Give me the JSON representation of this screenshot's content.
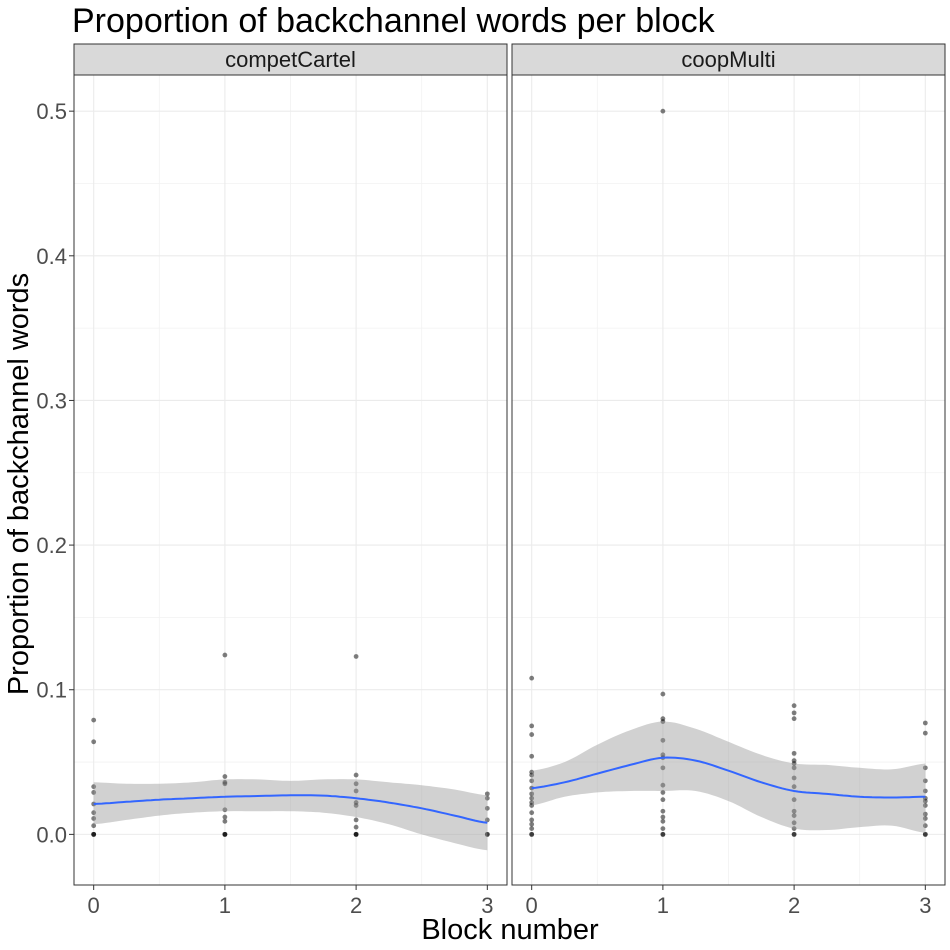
{
  "chart_data": {
    "type": "scatter",
    "title": "Proportion of backchannel words per block",
    "xlabel": "Block number",
    "ylabel": "Proportion of backchannel words",
    "xlim": [
      -0.15,
      3.15
    ],
    "ylim": [
      -0.035,
      0.525
    ],
    "x_ticks": [
      0,
      1,
      2,
      3
    ],
    "y_ticks": [
      0.0,
      0.1,
      0.2,
      0.3,
      0.4,
      0.5
    ],
    "x_tick_labels": [
      "0",
      "1",
      "2",
      "3"
    ],
    "y_tick_labels": [
      "0.0",
      "0.1",
      "0.2",
      "0.3",
      "0.4",
      "0.5"
    ],
    "grid": true,
    "smoother_color": "#3366ff",
    "ribbon_color": "#999999",
    "point_color": "#000000",
    "strip_fill": "#d9d9d9",
    "panels": [
      {
        "name": "competCartel",
        "points": [
          {
            "x": 0,
            "y": 0.079
          },
          {
            "x": 0,
            "y": 0.064
          },
          {
            "x": 0,
            "y": 0.033
          },
          {
            "x": 0,
            "y": 0.029
          },
          {
            "x": 0,
            "y": 0.021
          },
          {
            "x": 0,
            "y": 0.015
          },
          {
            "x": 0,
            "y": 0.011
          },
          {
            "x": 0,
            "y": 0.006
          },
          {
            "x": 0,
            "y": 0.0
          },
          {
            "x": 0,
            "y": 0.0
          },
          {
            "x": 0,
            "y": 0.0
          },
          {
            "x": 1,
            "y": 0.124
          },
          {
            "x": 1,
            "y": 0.04
          },
          {
            "x": 1,
            "y": 0.036
          },
          {
            "x": 1,
            "y": 0.035
          },
          {
            "x": 1,
            "y": 0.017
          },
          {
            "x": 1,
            "y": 0.012
          },
          {
            "x": 1,
            "y": 0.009
          },
          {
            "x": 1,
            "y": 0.0
          },
          {
            "x": 1,
            "y": 0.0
          },
          {
            "x": 1,
            "y": 0.0
          },
          {
            "x": 2,
            "y": 0.123
          },
          {
            "x": 2,
            "y": 0.041
          },
          {
            "x": 2,
            "y": 0.035
          },
          {
            "x": 2,
            "y": 0.03
          },
          {
            "x": 2,
            "y": 0.022
          },
          {
            "x": 2,
            "y": 0.02
          },
          {
            "x": 2,
            "y": 0.01
          },
          {
            "x": 2,
            "y": 0.005
          },
          {
            "x": 2,
            "y": 0.0
          },
          {
            "x": 2,
            "y": 0.0
          },
          {
            "x": 2,
            "y": 0.0
          },
          {
            "x": 3,
            "y": 0.028
          },
          {
            "x": 3,
            "y": 0.025
          },
          {
            "x": 3,
            "y": 0.018
          },
          {
            "x": 3,
            "y": 0.01
          },
          {
            "x": 3,
            "y": 0.0
          },
          {
            "x": 3,
            "y": 0.0
          }
        ],
        "smooth": {
          "x": [
            0,
            0.25,
            0.5,
            0.75,
            1,
            1.25,
            1.5,
            1.75,
            2,
            2.25,
            2.5,
            2.75,
            3
          ],
          "y": [
            0.021,
            0.0225,
            0.024,
            0.025,
            0.026,
            0.0265,
            0.027,
            0.0268,
            0.025,
            0.022,
            0.018,
            0.013,
            0.008
          ],
          "lower": [
            0.007,
            0.01,
            0.013,
            0.015,
            0.016,
            0.016,
            0.016,
            0.015,
            0.012,
            0.007,
            0.0,
            -0.006,
            -0.011
          ],
          "upper": [
            0.036,
            0.035,
            0.035,
            0.036,
            0.038,
            0.038,
            0.037,
            0.038,
            0.038,
            0.036,
            0.034,
            0.031,
            0.027
          ]
        }
      },
      {
        "name": "coopMulti",
        "points": [
          {
            "x": 0,
            "y": 0.108
          },
          {
            "x": 0,
            "y": 0.075
          },
          {
            "x": 0,
            "y": 0.069
          },
          {
            "x": 0,
            "y": 0.054
          },
          {
            "x": 0,
            "y": 0.043
          },
          {
            "x": 0,
            "y": 0.041
          },
          {
            "x": 0,
            "y": 0.037
          },
          {
            "x": 0,
            "y": 0.032
          },
          {
            "x": 0,
            "y": 0.028
          },
          {
            "x": 0,
            "y": 0.025
          },
          {
            "x": 0,
            "y": 0.022
          },
          {
            "x": 0,
            "y": 0.02
          },
          {
            "x": 0,
            "y": 0.015
          },
          {
            "x": 0,
            "y": 0.01
          },
          {
            "x": 0,
            "y": 0.007
          },
          {
            "x": 0,
            "y": 0.004
          },
          {
            "x": 0,
            "y": 0.0
          },
          {
            "x": 0,
            "y": 0.0
          },
          {
            "x": 1,
            "y": 0.5
          },
          {
            "x": 1,
            "y": 0.097
          },
          {
            "x": 1,
            "y": 0.08
          },
          {
            "x": 1,
            "y": 0.078
          },
          {
            "x": 1,
            "y": 0.065
          },
          {
            "x": 1,
            "y": 0.055
          },
          {
            "x": 1,
            "y": 0.053
          },
          {
            "x": 1,
            "y": 0.046
          },
          {
            "x": 1,
            "y": 0.034
          },
          {
            "x": 1,
            "y": 0.029
          },
          {
            "x": 1,
            "y": 0.024
          },
          {
            "x": 1,
            "y": 0.016
          },
          {
            "x": 1,
            "y": 0.012
          },
          {
            "x": 1,
            "y": 0.009
          },
          {
            "x": 1,
            "y": 0.004
          },
          {
            "x": 1,
            "y": 0.0
          },
          {
            "x": 1,
            "y": 0.0
          },
          {
            "x": 2,
            "y": 0.089
          },
          {
            "x": 2,
            "y": 0.084
          },
          {
            "x": 2,
            "y": 0.08
          },
          {
            "x": 2,
            "y": 0.056
          },
          {
            "x": 2,
            "y": 0.051
          },
          {
            "x": 2,
            "y": 0.049
          },
          {
            "x": 2,
            "y": 0.046
          },
          {
            "x": 2,
            "y": 0.039
          },
          {
            "x": 2,
            "y": 0.033
          },
          {
            "x": 2,
            "y": 0.024
          },
          {
            "x": 2,
            "y": 0.016
          },
          {
            "x": 2,
            "y": 0.013
          },
          {
            "x": 2,
            "y": 0.008
          },
          {
            "x": 2,
            "y": 0.004
          },
          {
            "x": 2,
            "y": 0.0
          },
          {
            "x": 2,
            "y": 0.0
          },
          {
            "x": 3,
            "y": 0.077
          },
          {
            "x": 3,
            "y": 0.07
          },
          {
            "x": 3,
            "y": 0.046
          },
          {
            "x": 3,
            "y": 0.037
          },
          {
            "x": 3,
            "y": 0.03
          },
          {
            "x": 3,
            "y": 0.025
          },
          {
            "x": 3,
            "y": 0.023
          },
          {
            "x": 3,
            "y": 0.02
          },
          {
            "x": 3,
            "y": 0.014
          },
          {
            "x": 3,
            "y": 0.011
          },
          {
            "x": 3,
            "y": 0.006
          },
          {
            "x": 3,
            "y": 0.0
          },
          {
            "x": 3,
            "y": 0.0
          }
        ],
        "smooth": {
          "x": [
            0,
            0.25,
            0.5,
            0.75,
            1,
            1.25,
            1.5,
            1.75,
            2,
            2.25,
            2.5,
            2.75,
            3
          ],
          "y": [
            0.032,
            0.036,
            0.042,
            0.048,
            0.053,
            0.051,
            0.044,
            0.036,
            0.03,
            0.028,
            0.026,
            0.0255,
            0.026
          ],
          "lower": [
            0.02,
            0.026,
            0.029,
            0.03,
            0.03,
            0.03,
            0.023,
            0.012,
            0.004,
            0.003,
            0.005,
            0.006,
            0.001
          ],
          "upper": [
            0.044,
            0.05,
            0.062,
            0.072,
            0.078,
            0.073,
            0.064,
            0.055,
            0.049,
            0.048,
            0.046,
            0.045,
            0.049
          ]
        }
      }
    ]
  }
}
